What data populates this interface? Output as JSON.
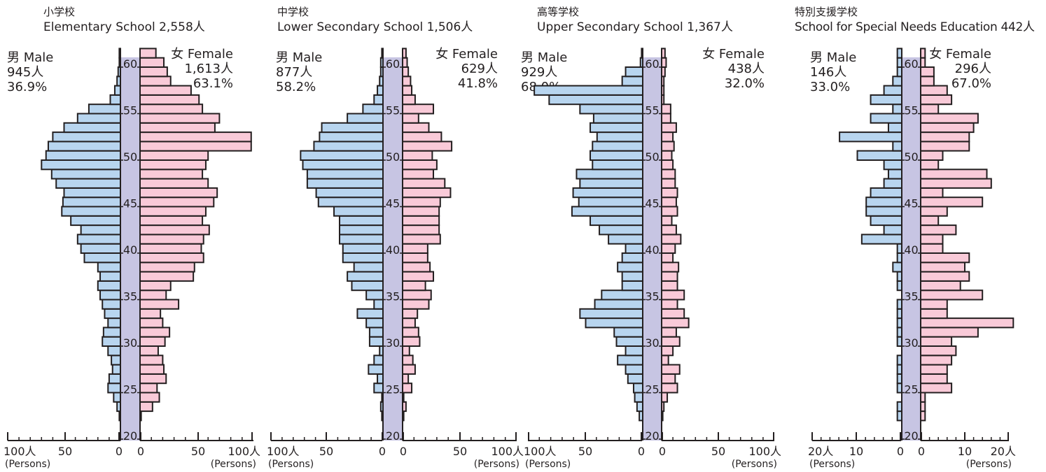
{
  "colors": {
    "male": "#b8d5ef",
    "female": "#f9cad8",
    "spine": "#c7c5e3",
    "stroke": "#231f20"
  },
  "age_ticks": [
    "20",
    "25",
    "30",
    "35",
    "40",
    "45",
    "50",
    "55",
    "60"
  ],
  "persons_label": "(Persons)",
  "chart_data": [
    {
      "type": "bar",
      "title_ja": "小学校",
      "title_en": "Elementary School 2,558人",
      "male": {
        "label": "男 Male",
        "count": "945人",
        "pct": "36.9%"
      },
      "female": {
        "label": "女 Female",
        "count": "1,613人",
        "pct": "63.1%"
      },
      "xmax": 100,
      "male_tick_labels": [
        "100人",
        "50",
        "0"
      ],
      "female_tick_labels": [
        "0",
        "50",
        "100人"
      ],
      "ages": [
        22,
        23,
        24,
        25,
        26,
        27,
        28,
        29,
        30,
        31,
        32,
        33,
        34,
        35,
        36,
        37,
        38,
        39,
        40,
        41,
        42,
        43,
        44,
        45,
        46,
        47,
        48,
        49,
        50,
        51,
        52,
        53,
        54,
        55,
        56,
        57,
        58,
        59,
        60,
        61
      ],
      "male_values": [
        1,
        3,
        6,
        11,
        10,
        7,
        8,
        11,
        16,
        15,
        11,
        14,
        16,
        18,
        20,
        18,
        20,
        32,
        35,
        38,
        35,
        44,
        52,
        51,
        50,
        57,
        61,
        70,
        66,
        64,
        60,
        50,
        38,
        28,
        9,
        5,
        3,
        2,
        1,
        1
      ],
      "female_values": [
        1,
        11,
        17,
        15,
        23,
        21,
        20,
        16,
        22,
        26,
        20,
        18,
        34,
        23,
        27,
        47,
        48,
        56,
        54,
        56,
        61,
        55,
        58,
        65,
        68,
        60,
        55,
        58,
        60,
        98,
        98,
        66,
        70,
        55,
        52,
        45,
        27,
        24,
        21,
        14
      ]
    },
    {
      "type": "bar",
      "title_ja": "中学校",
      "title_en": "Lower Secondary School 1,506人",
      "male": {
        "label": "男 Male",
        "count": "877人",
        "pct": "58.2%"
      },
      "female": {
        "label": "女 Female",
        "count": "629人",
        "pct": "41.8%"
      },
      "xmax": 100,
      "male_tick_labels": [
        "100人",
        "50",
        "0"
      ],
      "female_tick_labels": [
        "0",
        "50",
        "100人"
      ],
      "ages": [
        22,
        23,
        24,
        25,
        26,
        27,
        28,
        29,
        30,
        31,
        32,
        33,
        34,
        35,
        36,
        37,
        38,
        39,
        40,
        41,
        42,
        43,
        44,
        45,
        46,
        47,
        48,
        49,
        50,
        51,
        52,
        53,
        54,
        55,
        56,
        57,
        58,
        59,
        60,
        61
      ],
      "male_values": [
        1,
        2,
        1,
        8,
        5,
        13,
        8,
        3,
        12,
        12,
        15,
        23,
        8,
        15,
        28,
        32,
        26,
        36,
        36,
        39,
        39,
        39,
        44,
        58,
        60,
        68,
        68,
        72,
        74,
        62,
        57,
        55,
        32,
        18,
        8,
        5,
        3,
        2,
        2,
        1
      ],
      "female_values": [
        1,
        3,
        1,
        8,
        5,
        11,
        9,
        6,
        15,
        14,
        11,
        13,
        23,
        25,
        20,
        27,
        24,
        22,
        22,
        33,
        32,
        32,
        32,
        33,
        42,
        37,
        27,
        30,
        26,
        43,
        34,
        23,
        14,
        27,
        11,
        8,
        7,
        5,
        4,
        3
      ]
    },
    {
      "type": "bar",
      "title_ja": "高等学校",
      "title_en": "Upper Secondary School 1,367人",
      "male": {
        "label": "男 Male",
        "count": "929人",
        "pct": "68.0%"
      },
      "female": {
        "label": "女 Female",
        "count": "438人",
        "pct": "32.0%"
      },
      "xmax": 100,
      "male_tick_labels": [
        "100人",
        "50",
        "0"
      ],
      "female_tick_labels": [
        "0",
        "50",
        "100人"
      ],
      "ages": [
        22,
        23,
        24,
        25,
        26,
        27,
        28,
        29,
        30,
        31,
        32,
        33,
        34,
        35,
        36,
        37,
        38,
        39,
        40,
        41,
        42,
        43,
        44,
        45,
        46,
        47,
        48,
        49,
        50,
        51,
        52,
        53,
        54,
        55,
        56,
        57,
        58,
        59,
        60,
        61
      ],
      "male_values": [
        3,
        5,
        7,
        8,
        13,
        15,
        22,
        15,
        23,
        25,
        50,
        55,
        42,
        36,
        18,
        18,
        22,
        18,
        15,
        30,
        38,
        46,
        62,
        56,
        61,
        55,
        58,
        44,
        46,
        44,
        40,
        46,
        43,
        55,
        82,
        95,
        18,
        15,
        2,
        1
      ],
      "female_values": [
        1,
        2,
        5,
        14,
        12,
        16,
        6,
        10,
        16,
        13,
        24,
        20,
        14,
        20,
        14,
        14,
        15,
        10,
        12,
        17,
        13,
        9,
        14,
        13,
        14,
        12,
        12,
        10,
        9,
        11,
        10,
        13,
        8,
        8,
        2,
        2,
        2,
        3,
        4,
        3
      ]
    },
    {
      "type": "bar",
      "title_ja": "特別支援学校",
      "title_en": "School for Special Needs Education 442人",
      "male": {
        "label": "男 Male",
        "count": "146人",
        "pct": "33.0%"
      },
      "female": {
        "label": "女 Female",
        "count": "296人",
        "pct": "67.0%"
      },
      "xmax": 20,
      "male_tick_labels": [
        "20人",
        "10",
        "0"
      ],
      "female_tick_labels": [
        "0",
        "10",
        "20人"
      ],
      "ages": [
        22,
        23,
        24,
        25,
        26,
        27,
        28,
        29,
        30,
        31,
        32,
        33,
        34,
        35,
        36,
        37,
        38,
        39,
        40,
        41,
        42,
        43,
        44,
        45,
        46,
        47,
        48,
        49,
        50,
        51,
        52,
        53,
        54,
        55,
        56,
        57,
        58,
        59,
        60,
        61
      ],
      "male_values": [
        1,
        1,
        0,
        1,
        1,
        1,
        1,
        0,
        1,
        1,
        1,
        1,
        1,
        0,
        1,
        1,
        2,
        1,
        1,
        9,
        4,
        7,
        8,
        8,
        7,
        4,
        3,
        4,
        10,
        2,
        14,
        3,
        7,
        2,
        7,
        4,
        2,
        1,
        1,
        1
      ],
      "female_values": [
        1,
        1,
        1,
        7,
        6,
        6,
        7,
        8,
        7,
        13,
        21,
        6,
        6,
        14,
        9,
        11,
        10,
        11,
        5,
        5,
        8,
        4,
        6,
        14,
        5,
        16,
        15,
        4,
        5,
        11,
        11,
        12,
        13,
        4,
        7,
        6,
        3,
        3,
        1,
        1
      ]
    }
  ]
}
